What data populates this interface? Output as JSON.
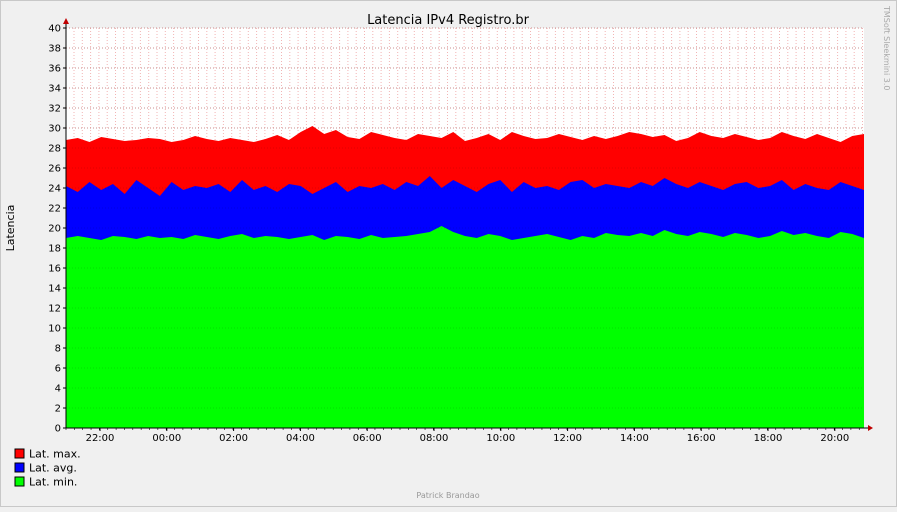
{
  "chart_data": {
    "type": "area",
    "title": "Latencia IPv4 Registro.br",
    "ylabel": "Latencia",
    "xlabel": "",
    "ylim": [
      0,
      40
    ],
    "y_ticks": [
      0,
      2,
      4,
      6,
      8,
      10,
      12,
      14,
      16,
      18,
      20,
      22,
      24,
      26,
      28,
      30,
      32,
      34,
      36,
      38,
      40
    ],
    "x_tick_labels": [
      "22:00",
      "00:00",
      "02:00",
      "04:00",
      "06:00",
      "08:00",
      "10:00",
      "12:00",
      "14:00",
      "16:00",
      "18:00",
      "20:00"
    ],
    "grid": true,
    "legend_placement": "bottom-left",
    "series": [
      {
        "name": "Lat. max.",
        "color": "#ff0000",
        "values": [
          28.8,
          29.0,
          28.6,
          29.1,
          28.9,
          28.7,
          28.8,
          29.0,
          28.9,
          28.6,
          28.8,
          29.2,
          28.9,
          28.7,
          29.0,
          28.8,
          28.6,
          28.9,
          29.3,
          28.8,
          29.6,
          30.2,
          29.4,
          29.8,
          29.1,
          28.9,
          29.6,
          29.3,
          29.0,
          28.8,
          29.4,
          29.2,
          29.0,
          29.6,
          28.7,
          29.0,
          29.4,
          28.8,
          29.6,
          29.2,
          28.9,
          29.0,
          29.4,
          29.1,
          28.8,
          29.2,
          28.9,
          29.2,
          29.6,
          29.4,
          29.1,
          29.3,
          28.7,
          29.0,
          29.6,
          29.2,
          29.0,
          29.4,
          29.1,
          28.8,
          29.0,
          29.6,
          29.2,
          28.9,
          29.4,
          29.0,
          28.6,
          29.2,
          29.4
        ]
      },
      {
        "name": "Lat. avg.",
        "color": "#0000ff",
        "values": [
          24.2,
          23.6,
          24.6,
          23.8,
          24.4,
          23.4,
          24.8,
          24.0,
          23.2,
          24.6,
          23.8,
          24.2,
          24.0,
          24.4,
          23.6,
          24.8,
          23.8,
          24.2,
          23.6,
          24.4,
          24.2,
          23.4,
          24.0,
          24.6,
          23.6,
          24.2,
          24.0,
          24.4,
          23.8,
          24.6,
          24.2,
          25.2,
          24.0,
          24.8,
          24.2,
          23.6,
          24.4,
          24.8,
          23.6,
          24.6,
          24.0,
          24.2,
          23.8,
          24.6,
          24.8,
          24.0,
          24.4,
          24.2,
          24.0,
          24.6,
          24.2,
          25.0,
          24.4,
          24.0,
          24.6,
          24.2,
          23.8,
          24.4,
          24.6,
          24.0,
          24.2,
          24.8,
          23.8,
          24.4,
          24.0,
          23.8,
          24.6,
          24.2,
          23.8
        ]
      },
      {
        "name": "Lat. min.",
        "color": "#00ff00",
        "values": [
          19.0,
          19.2,
          19.0,
          18.8,
          19.2,
          19.1,
          18.9,
          19.2,
          19.0,
          19.1,
          18.9,
          19.3,
          19.1,
          18.9,
          19.2,
          19.4,
          19.0,
          19.2,
          19.1,
          18.9,
          19.1,
          19.3,
          18.8,
          19.2,
          19.1,
          18.9,
          19.3,
          19.0,
          19.1,
          19.2,
          19.4,
          19.6,
          20.2,
          19.6,
          19.2,
          19.0,
          19.4,
          19.2,
          18.8,
          19.0,
          19.2,
          19.4,
          19.1,
          18.8,
          19.2,
          19.0,
          19.5,
          19.3,
          19.2,
          19.5,
          19.2,
          19.8,
          19.4,
          19.2,
          19.6,
          19.4,
          19.1,
          19.5,
          19.3,
          19.0,
          19.2,
          19.7,
          19.3,
          19.5,
          19.2,
          19.0,
          19.6,
          19.4,
          19.0
        ]
      }
    ]
  },
  "watermark": "TMSoft Sleekmini 3.0",
  "footer": "Patrick Brandao"
}
